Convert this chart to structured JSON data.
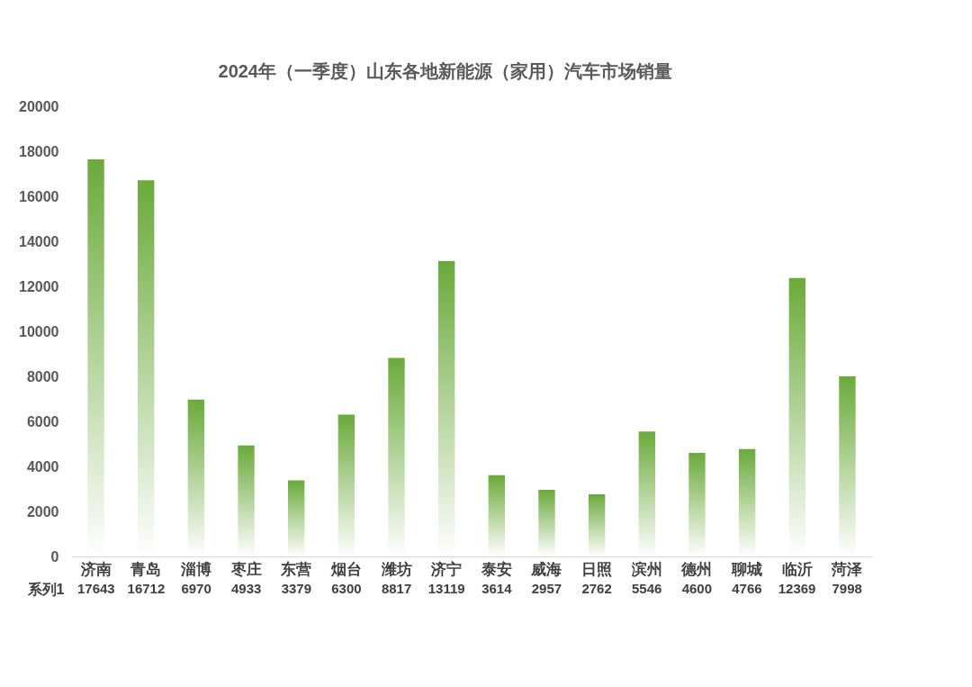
{
  "chart_data": {
    "type": "bar",
    "title": "2024年（一季度）山东各地新能源（家用）汽车市场销量",
    "categories": [
      "济南",
      "青岛",
      "淄博",
      "枣庄",
      "东营",
      "烟台",
      "潍坊",
      "济宁",
      "泰安",
      "威海",
      "日照",
      "滨州",
      "德州",
      "聊城",
      "临沂",
      "菏泽"
    ],
    "series": [
      {
        "name": "系列1",
        "color": "#6aaa3a",
        "values": [
          17643,
          16712,
          6970,
          4933,
          3379,
          6300,
          8817,
          13119,
          3614,
          2957,
          2762,
          5546,
          4600,
          4766,
          12369,
          7998
        ]
      }
    ],
    "ylim": [
      0,
      20000
    ],
    "yticks": [
      0,
      2000,
      4000,
      6000,
      8000,
      10000,
      12000,
      14000,
      16000,
      18000,
      20000
    ],
    "grid": false,
    "data_labels": true
  }
}
